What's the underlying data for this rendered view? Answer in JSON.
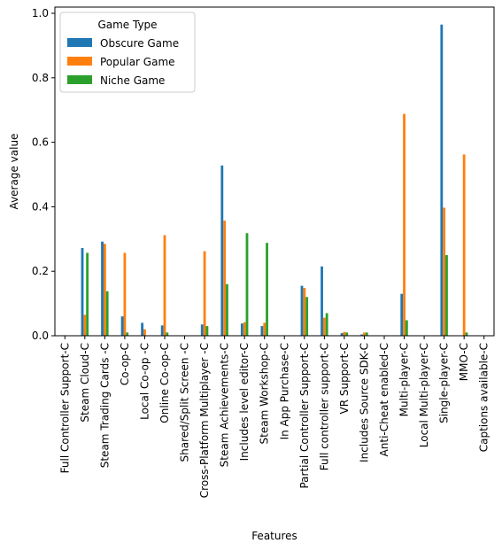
{
  "chart_data": {
    "type": "bar",
    "xlabel": "Features",
    "ylabel": "Average value",
    "ylim": [
      0,
      1.0
    ],
    "yticks": [
      "0.0",
      "0.2",
      "0.4",
      "0.6",
      "0.8",
      "1.0"
    ],
    "grid": false,
    "legend": {
      "title": "Game Type",
      "placement": "top-left"
    },
    "categories": [
      "Full Controller Support-C",
      "Steam Cloud-C",
      "Steam Trading Cards -C",
      "Co-op-C",
      "Local Co-op -C",
      "Online Co-op-C",
      "Shared/Split Screen -C",
      "Cross-Platform Multiplayer -C",
      "Steam Achievements-C",
      "Includes level editor-C",
      "Steam Workshop-C",
      "In App Purchase-C",
      "Partial Controller Support-C",
      "Full controller support-C",
      "VR Support-C",
      "Includes Source SDK-C",
      "Anti-Cheat enabled-C",
      "Multi-player-C",
      "Local Multi-player-C",
      "Single-player-C",
      "MMO-C",
      "Captions available-C"
    ],
    "series": [
      {
        "name": "Obscure Game",
        "color": "#1f77b4",
        "values": [
          0,
          0.272,
          0.292,
          0.06,
          0.04,
          0.032,
          0,
          0.035,
          0.528,
          0.038,
          0.03,
          0,
          0.155,
          0.215,
          0.008,
          0.004,
          0,
          0.13,
          0,
          0.965,
          0,
          0
        ]
      },
      {
        "name": "Popular Game",
        "color": "#ff7f0e",
        "values": [
          0,
          0.065,
          0.285,
          0.257,
          0.02,
          0.312,
          0,
          0.262,
          0.357,
          0.042,
          0.04,
          0,
          0.148,
          0.056,
          0.012,
          0.01,
          0,
          0.688,
          0,
          0.397,
          0.562,
          0
        ]
      },
      {
        "name": "Niche Game",
        "color": "#2ca02c",
        "values": [
          0,
          0.257,
          0.138,
          0.01,
          0,
          0.01,
          0,
          0.03,
          0.16,
          0.318,
          0.288,
          0,
          0.12,
          0.07,
          0.01,
          0.01,
          0,
          0.048,
          0,
          0.25,
          0.01,
          0
        ]
      }
    ]
  }
}
